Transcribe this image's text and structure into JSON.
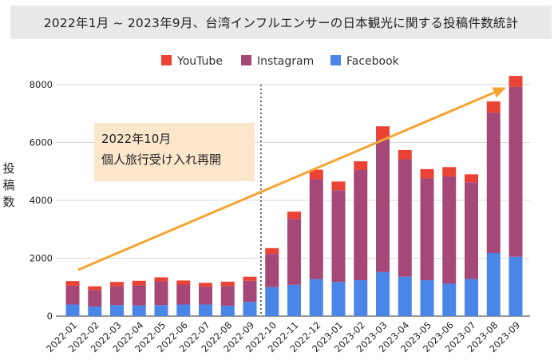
{
  "chart_data": {
    "type": "bar",
    "stacked": true,
    "title": "2022年1月 ~ 2023年9月、台湾インフルエンサーの日本観光に関する投稿件数統計",
    "ylabel": "投稿数",
    "xlabel": "",
    "ylim": [
      0,
      8000
    ],
    "yticks": [
      0,
      2000,
      4000,
      6000,
      8000
    ],
    "grid": true,
    "legend_position": "top",
    "categories": [
      "2022-01",
      "2022-02",
      "2022-03",
      "2022-04",
      "2022-05",
      "2022-06",
      "2022-07",
      "2022-08",
      "2022-09",
      "2022-10",
      "2022-11",
      "2022-12",
      "2023-01",
      "2023-02",
      "2023-03",
      "2023-04",
      "2023-05",
      "2023-06",
      "2023-07",
      "2023-08",
      "2023-09"
    ],
    "series": [
      {
        "name": "Facebook",
        "color": "#4a86e8",
        "values": [
          400,
          330,
          380,
          370,
          380,
          400,
          400,
          360,
          490,
          1000,
          1080,
          1280,
          1180,
          1240,
          1520,
          1360,
          1240,
          1120,
          1280,
          2180,
          2050
        ]
      },
      {
        "name": "Instagram",
        "color": "#a54878",
        "values": [
          650,
          570,
          650,
          690,
          820,
          690,
          610,
          680,
          730,
          1150,
          2280,
          3450,
          3170,
          3810,
          4580,
          4060,
          3520,
          3710,
          3350,
          4860,
          5870
        ]
      },
      {
        "name": "YouTube",
        "color": "#ea4335",
        "values": [
          160,
          130,
          150,
          160,
          140,
          140,
          140,
          150,
          140,
          200,
          250,
          330,
          300,
          300,
          460,
          320,
          320,
          320,
          270,
          380,
          380
        ]
      }
    ],
    "annotations": [
      {
        "text_line1": "2022年10月",
        "text_line2": "個人旅行受け入れ再開",
        "marker_between": [
          "2022-09",
          "2022-10"
        ]
      }
    ],
    "trend_arrow": {
      "color": "#f4a433",
      "from": {
        "x": "2022-01",
        "y": 1600
      },
      "to": {
        "x": "2023-09",
        "y": 7900
      }
    }
  }
}
